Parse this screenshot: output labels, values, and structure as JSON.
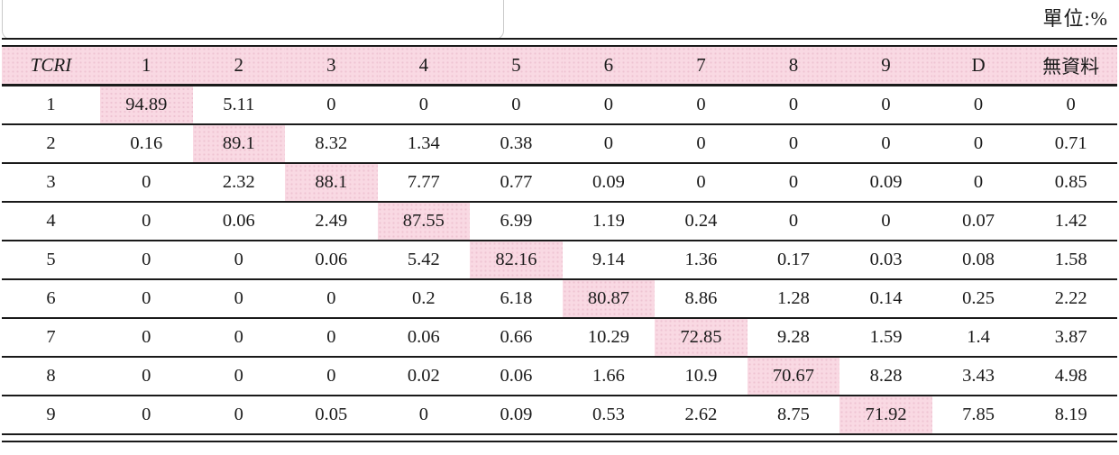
{
  "meta": {
    "unit_label": "單位:%"
  },
  "colors": {
    "header_bg": "#f9d9e3",
    "highlight_bg": "#f9d9e3",
    "rule": "#1a1a1a"
  },
  "table": {
    "columns": [
      "TCRI",
      "1",
      "2",
      "3",
      "4",
      "5",
      "6",
      "7",
      "8",
      "9",
      "D",
      "無資料"
    ],
    "rows": [
      {
        "label": "1",
        "values": [
          "94.89",
          "5.11",
          "0",
          "0",
          "0",
          "0",
          "0",
          "0",
          "0",
          "0",
          "0"
        ],
        "highlight_index": 0
      },
      {
        "label": "2",
        "values": [
          "0.16",
          "89.1",
          "8.32",
          "1.34",
          "0.38",
          "0",
          "0",
          "0",
          "0",
          "0",
          "0.71"
        ],
        "highlight_index": 1
      },
      {
        "label": "3",
        "values": [
          "0",
          "2.32",
          "88.1",
          "7.77",
          "0.77",
          "0.09",
          "0",
          "0",
          "0.09",
          "0",
          "0.85"
        ],
        "highlight_index": 2
      },
      {
        "label": "4",
        "values": [
          "0",
          "0.06",
          "2.49",
          "87.55",
          "6.99",
          "1.19",
          "0.24",
          "0",
          "0",
          "0.07",
          "1.42"
        ],
        "highlight_index": 3
      },
      {
        "label": "5",
        "values": [
          "0",
          "0",
          "0.06",
          "5.42",
          "82.16",
          "9.14",
          "1.36",
          "0.17",
          "0.03",
          "0.08",
          "1.58"
        ],
        "highlight_index": 4
      },
      {
        "label": "6",
        "values": [
          "0",
          "0",
          "0",
          "0.2",
          "6.18",
          "80.87",
          "8.86",
          "1.28",
          "0.14",
          "0.25",
          "2.22"
        ],
        "highlight_index": 5
      },
      {
        "label": "7",
        "values": [
          "0",
          "0",
          "0",
          "0.06",
          "0.66",
          "10.29",
          "72.85",
          "9.28",
          "1.59",
          "1.4",
          "3.87"
        ],
        "highlight_index": 6
      },
      {
        "label": "8",
        "values": [
          "0",
          "0",
          "0",
          "0.02",
          "0.06",
          "1.66",
          "10.9",
          "70.67",
          "8.28",
          "3.43",
          "4.98"
        ],
        "highlight_index": 7
      },
      {
        "label": "9",
        "values": [
          "0",
          "0",
          "0.05",
          "0",
          "0.09",
          "0.53",
          "2.62",
          "8.75",
          "71.92",
          "7.85",
          "8.19"
        ],
        "highlight_index": 8
      }
    ]
  }
}
